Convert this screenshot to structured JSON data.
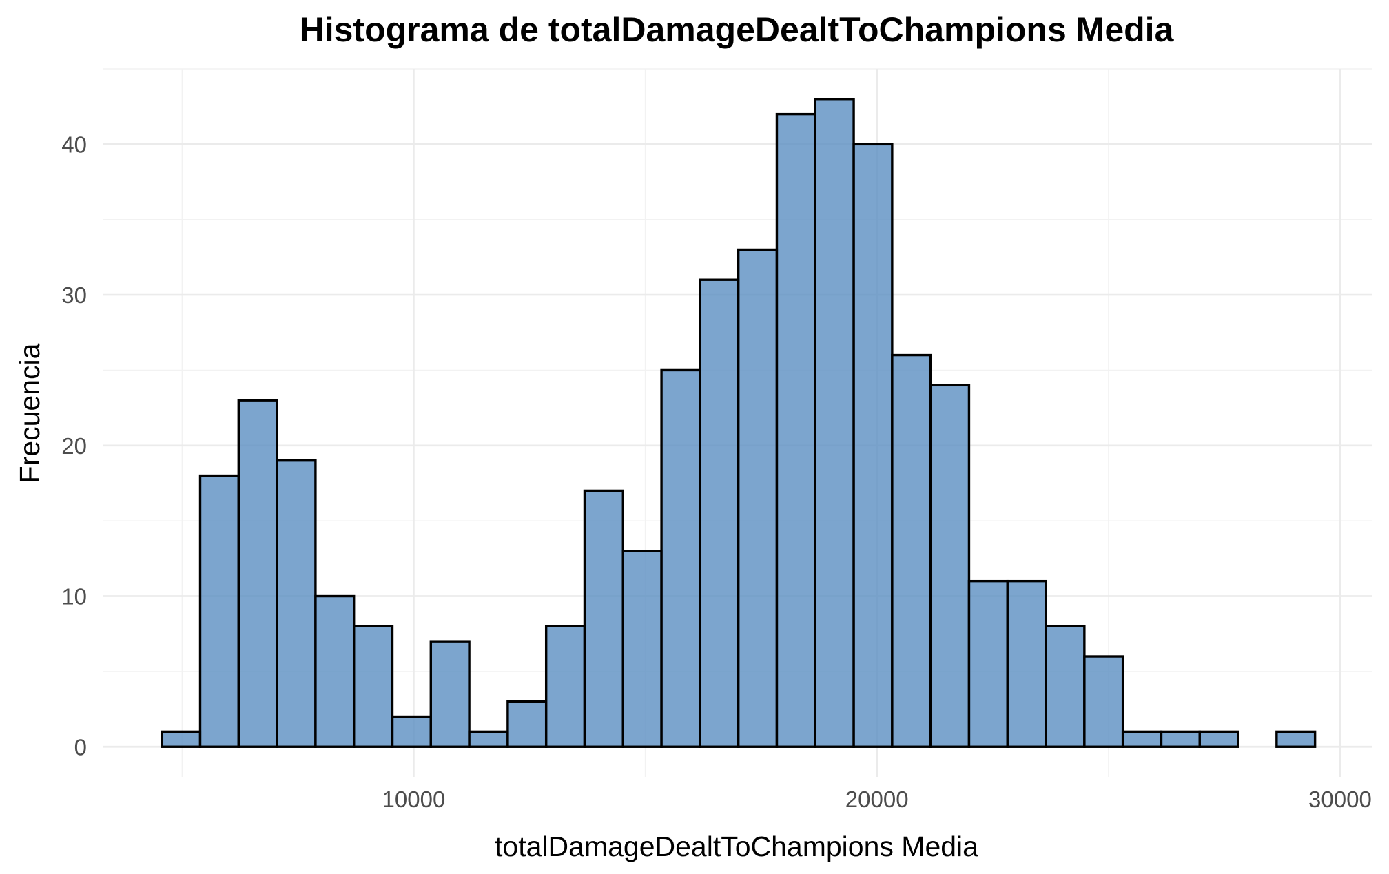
{
  "chart_data": {
    "type": "bar",
    "title": "Histograma de totalDamageDealtToChampions Media",
    "xlabel": "totalDamageDealtToChampions Media",
    "ylabel": "Frecuencia",
    "fill_color": "#5b8fc2",
    "edge_color": "#000000",
    "bin_width": 830,
    "bin_start": 4560,
    "x_ticks": [
      10000,
      20000,
      30000
    ],
    "x_tick_labels": [
      "10000",
      "20000",
      "30000"
    ],
    "y_ticks": [
      0,
      10,
      20,
      30,
      40
    ],
    "y_tick_labels": [
      "0",
      "10",
      "20",
      "30",
      "40"
    ],
    "xlim": [
      3300,
      30700
    ],
    "ylim": [
      -2,
      45
    ],
    "counts": [
      1,
      18,
      23,
      19,
      10,
      8,
      2,
      7,
      1,
      3,
      8,
      17,
      13,
      25,
      31,
      33,
      42,
      43,
      40,
      26,
      24,
      11,
      11,
      8,
      6,
      1,
      1,
      1,
      0,
      1
    ],
    "grid": true,
    "legend": "none"
  }
}
